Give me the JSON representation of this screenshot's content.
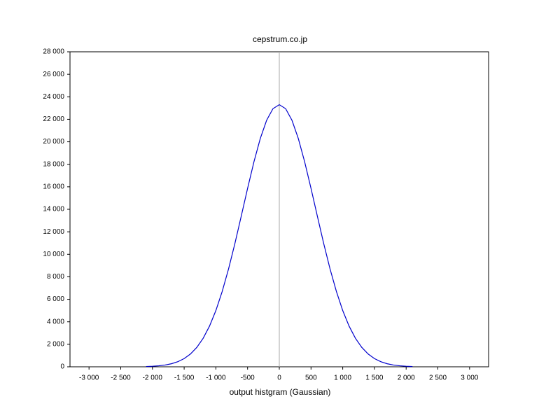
{
  "chart_data": {
    "type": "line",
    "title": "cepstrum.co.jp",
    "x_label": "output histgram (Gaussian)",
    "x": [
      -2100,
      -2000,
      -1900,
      -1800,
      -1700,
      -1600,
      -1500,
      -1400,
      -1300,
      -1200,
      -1100,
      -1000,
      -900,
      -800,
      -700,
      -600,
      -500,
      -400,
      -300,
      -200,
      -100,
      0,
      100,
      200,
      300,
      400,
      500,
      600,
      700,
      800,
      900,
      1000,
      1100,
      1200,
      1300,
      1400,
      1500,
      1600,
      1700,
      1800,
      1900,
      2000,
      2100
    ],
    "series": [
      {
        "color": "#0000cc",
        "values": [
          26,
          49,
          90,
          159,
          273,
          453,
          730,
          1141,
          1729,
          2540,
          3619,
          5000,
          6699,
          8703,
          10960,
          13390,
          15858,
          18216,
          20287,
          21909,
          22943,
          23300,
          22943,
          21909,
          20287,
          18216,
          15858,
          13390,
          10960,
          8703,
          6699,
          5000,
          3619,
          2540,
          1729,
          1141,
          730,
          453,
          273,
          159,
          90,
          49,
          26
        ]
      }
    ],
    "xlim": [
      -3300,
      3300
    ],
    "ylim": [
      0,
      28000
    ],
    "xticks": [
      {
        "value": -3000,
        "label": "-3 000"
      },
      {
        "value": -2500,
        "label": "-2 500"
      },
      {
        "value": -2000,
        "label": "-2 000"
      },
      {
        "value": -1500,
        "label": "-1 500"
      },
      {
        "value": -1000,
        "label": "-1 000"
      },
      -500,
      0,
      500,
      {
        "value": 1000,
        "label": "1 000"
      },
      {
        "value": 1500,
        "label": "1 500"
      },
      {
        "value": 2000,
        "label": "2 000"
      },
      {
        "value": 2500,
        "label": "2 500"
      },
      {
        "value": 3000,
        "label": "3 000"
      }
    ],
    "yticks": [
      0,
      {
        "value": 2000,
        "label": "2 000"
      },
      {
        "value": 4000,
        "label": "4 000"
      },
      {
        "value": 6000,
        "label": "6 000"
      },
      {
        "value": 8000,
        "label": "8 000"
      },
      {
        "value": 10000,
        "label": "10 000"
      },
      {
        "value": 12000,
        "label": "12 000"
      },
      {
        "value": 14000,
        "label": "14 000"
      },
      {
        "value": 16000,
        "label": "16 000"
      },
      {
        "value": 18000,
        "label": "18 000"
      },
      {
        "value": 20000,
        "label": "20 000"
      },
      {
        "value": 22000,
        "label": "22 000"
      },
      {
        "value": 24000,
        "label": "24 000"
      },
      {
        "value": 26000,
        "label": "26 000"
      },
      {
        "value": 28000,
        "label": "28 000"
      }
    ],
    "grid": false,
    "zero_line_color": "#aaaaaa"
  }
}
